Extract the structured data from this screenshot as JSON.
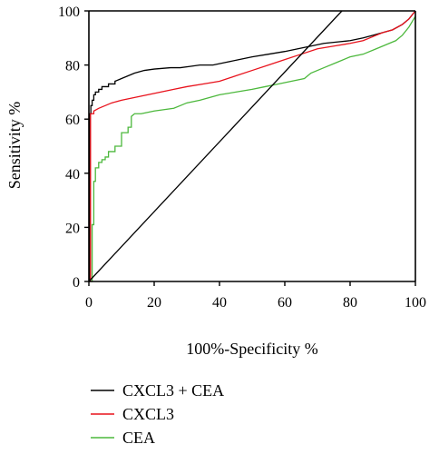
{
  "chart_data": {
    "type": "line",
    "title": "",
    "xlabel": "100%-Specificity %",
    "ylabel": "Sensitivity %",
    "xlim": [
      0,
      100
    ],
    "ylim": [
      0,
      100
    ],
    "xticks": [
      0,
      20,
      40,
      60,
      80,
      100
    ],
    "yticks": [
      0,
      20,
      40,
      60,
      80,
      100
    ],
    "grid": false,
    "legend_position": "bottom-left",
    "series": [
      {
        "name": "CXCL3 + CEA",
        "color": "#000000",
        "x": [
          0,
          0.3,
          0.3,
          0.6,
          0.6,
          1,
          1,
          1.5,
          1.5,
          2,
          2,
          3,
          3,
          4,
          4,
          6,
          6,
          8,
          8,
          10,
          12,
          14,
          17,
          20,
          25,
          28,
          31,
          34,
          38,
          42,
          46,
          50,
          55,
          60,
          64,
          68,
          72,
          76,
          80,
          84,
          87,
          90,
          93,
          96,
          98,
          100
        ],
        "y": [
          0,
          0,
          62,
          62,
          65,
          65,
          67,
          67,
          69,
          69,
          70,
          70,
          71,
          71,
          72,
          72,
          73,
          73,
          74,
          75,
          76,
          77,
          78,
          78.5,
          79,
          79,
          79.5,
          80,
          80,
          81,
          82,
          83,
          84,
          85,
          86,
          87,
          88,
          88.5,
          89,
          90,
          91,
          92,
          93,
          95,
          97,
          100
        ]
      },
      {
        "name": "CXCL3",
        "color": "#e8121c",
        "x": [
          0,
          0.5,
          0.5,
          1.5,
          1.5,
          3,
          5,
          7,
          10,
          14,
          18,
          22,
          26,
          30,
          35,
          40,
          45,
          50,
          55,
          60,
          65,
          70,
          75,
          80,
          84,
          86,
          88,
          90,
          93,
          96,
          98,
          100
        ],
        "y": [
          0,
          0,
          62,
          62,
          63,
          64,
          65,
          66,
          67,
          68,
          69,
          70,
          71,
          72,
          73,
          74,
          76,
          78,
          80,
          82,
          84,
          86,
          87,
          88,
          89,
          90,
          91,
          92,
          93,
          95,
          97,
          100
        ]
      },
      {
        "name": "CEA",
        "color": "#4cb83c",
        "x": [
          0,
          1,
          1,
          1.5,
          1.5,
          2,
          2,
          3,
          3,
          4,
          4,
          5,
          5,
          6,
          6,
          8,
          8,
          10,
          10,
          12,
          12,
          13,
          13,
          14,
          16,
          18,
          20,
          23,
          26,
          28,
          30,
          34,
          37,
          40,
          45,
          50,
          54,
          58,
          62,
          66,
          68,
          72,
          76,
          80,
          84,
          88,
          90,
          92,
          94,
          96,
          98,
          100
        ],
        "y": [
          0,
          0,
          21,
          21,
          37,
          37,
          42,
          42,
          44,
          44,
          45,
          45,
          46,
          46,
          48,
          48,
          50,
          50,
          55,
          55,
          57,
          57,
          61,
          62,
          62,
          62.5,
          63,
          63.5,
          64,
          65,
          66,
          67,
          68,
          69,
          70,
          71,
          72,
          73,
          74,
          75,
          77,
          79,
          81,
          83,
          84,
          86,
          87,
          88,
          89,
          91,
          94,
          98
        ]
      },
      {
        "name": "",
        "color": "#000000",
        "x": [
          0,
          77.5
        ],
        "y": [
          0,
          100
        ]
      }
    ]
  }
}
